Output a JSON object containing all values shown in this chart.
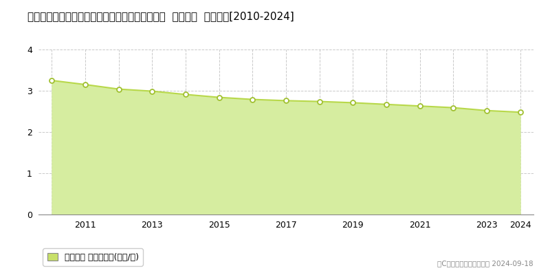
{
  "title": "長野県上水内郡信濃町大字古間字柳原４７２番４  基準地価  地価推移[2010-2024]",
  "years": [
    2010,
    2011,
    2012,
    2013,
    2014,
    2015,
    2016,
    2017,
    2018,
    2019,
    2020,
    2021,
    2022,
    2023,
    2024
  ],
  "values": [
    3.25,
    3.15,
    3.04,
    2.99,
    2.91,
    2.84,
    2.79,
    2.76,
    2.74,
    2.71,
    2.67,
    2.63,
    2.59,
    2.52,
    2.48
  ],
  "ylim": [
    0,
    4
  ],
  "yticks": [
    0,
    1,
    2,
    3,
    4
  ],
  "line_color": "#b8d84a",
  "fill_color": "#d6eda0",
  "marker_color": "#ffffff",
  "marker_edge_color": "#a0c030",
  "grid_color": "#bbbbbb",
  "bg_color": "#ffffff",
  "legend_label": "基準地価 平均坪単価(万円/坪)",
  "legend_marker_color": "#c8e06a",
  "copyright_text": "（C）土地価格ドットコム 2024-09-18",
  "title_fontsize": 11,
  "axis_fontsize": 9,
  "legend_fontsize": 9,
  "xlim_left": 2009.6,
  "xlim_right": 2024.4,
  "xtick_labels": [
    "2011",
    "2013",
    "2015",
    "2017",
    "2019",
    "2021",
    "2023",
    "2024"
  ],
  "xtick_positions": [
    2011,
    2013,
    2015,
    2017,
    2019,
    2021,
    2023,
    2024
  ]
}
